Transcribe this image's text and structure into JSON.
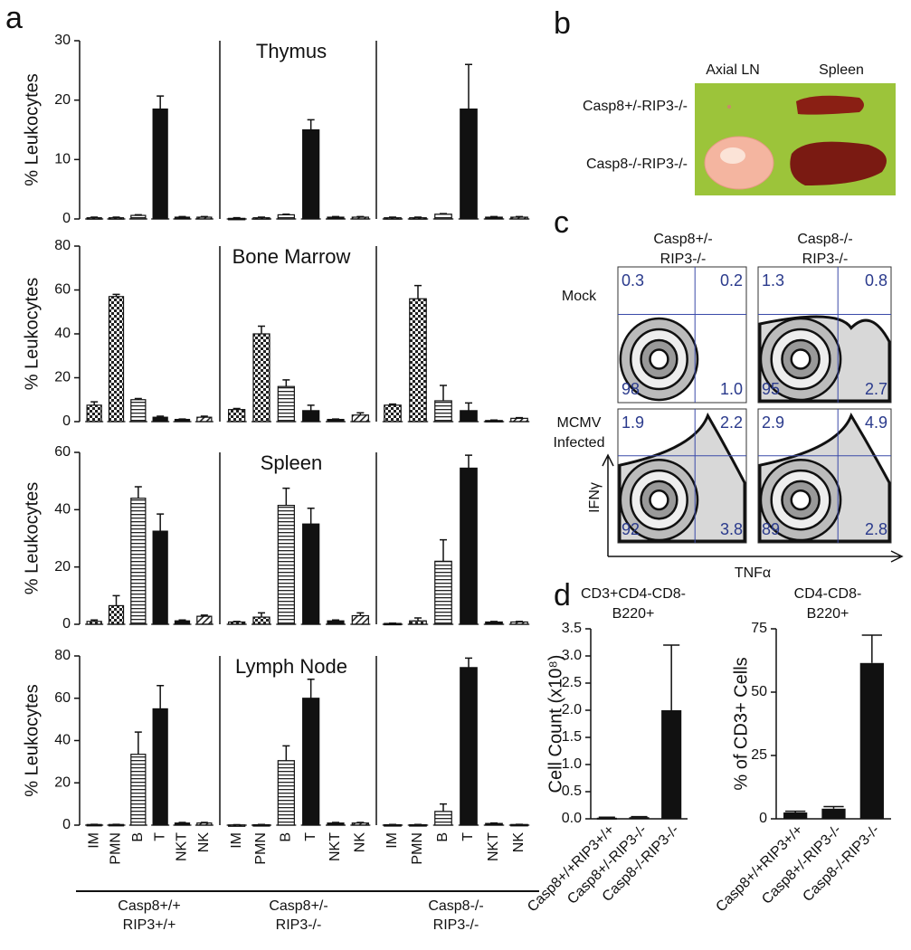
{
  "panel_labels": [
    "a",
    "b",
    "c",
    "d"
  ],
  "panel_a": {
    "categories": [
      "IM",
      "PMN",
      "B",
      "T",
      "NKT",
      "NK"
    ],
    "groups": [
      [
        "Casp8+/+",
        "RIP3+/+"
      ],
      [
        "Casp8+/-",
        "RIP3-/-"
      ],
      [
        "Casp8-/-",
        "RIP3-/-"
      ]
    ],
    "patterns": [
      "checker",
      "checker",
      "hstripe",
      "solid",
      "solid",
      "diag"
    ],
    "color": "#111111"
  },
  "chart_data": [
    {
      "type": "bar",
      "title": "Thymus",
      "y_label": "% Leukocytes",
      "ylim": [
        0,
        30
      ],
      "yticks": [
        0,
        10,
        20,
        30
      ],
      "series": [
        {
          "values": [
            0.2,
            0.2,
            0.6,
            18.5,
            0.3,
            0.3
          ],
          "errors": [
            0.1,
            0.1,
            0.1,
            2.2,
            0.1,
            0.1
          ]
        },
        {
          "values": [
            0.1,
            0.2,
            0.7,
            15,
            0.3,
            0.3
          ],
          "errors": [
            0.1,
            0.1,
            0.1,
            1.7,
            0.1,
            0.1
          ]
        },
        {
          "values": [
            0.2,
            0.2,
            0.8,
            18.5,
            0.3,
            0.3
          ],
          "errors": [
            0.1,
            0.1,
            0.1,
            7.5,
            0.1,
            0.1
          ]
        }
      ]
    },
    {
      "type": "bar",
      "title": "Bone Marrow",
      "y_label": "% Leukocytes",
      "ylim": [
        0,
        80
      ],
      "yticks": [
        0,
        20,
        40,
        60,
        80
      ],
      "series": [
        {
          "values": [
            7.5,
            57,
            10,
            2,
            1,
            2
          ],
          "errors": [
            1.5,
            1,
            0.5,
            0.5,
            0.2,
            0.5
          ]
        },
        {
          "values": [
            5.5,
            40,
            16,
            5,
            1,
            3
          ],
          "errors": [
            0.5,
            3.5,
            3,
            2.5,
            0.2,
            1
          ]
        },
        {
          "values": [
            7.5,
            56,
            9.5,
            5,
            0.5,
            1.5
          ],
          "errors": [
            0.5,
            6,
            7,
            3.5,
            0.2,
            0.3
          ]
        }
      ]
    },
    {
      "type": "bar",
      "title": "Spleen",
      "y_label": "% Leukocytes",
      "ylim": [
        0,
        60
      ],
      "yticks": [
        0,
        20,
        40,
        60
      ],
      "series": [
        {
          "values": [
            1,
            6.5,
            44,
            32.5,
            1.2,
            2.8
          ],
          "errors": [
            0.5,
            3.5,
            4,
            6,
            0.3,
            0.4
          ]
        },
        {
          "values": [
            0.8,
            2.5,
            41.5,
            35,
            1.2,
            3
          ],
          "errors": [
            0.2,
            1.5,
            6,
            5.5,
            0.3,
            1
          ]
        },
        {
          "values": [
            0.3,
            1.2,
            22,
            54.5,
            0.8,
            0.8
          ],
          "errors": [
            0.1,
            1,
            7.5,
            4.5,
            0.2,
            0.2
          ]
        }
      ]
    },
    {
      "type": "bar",
      "title": "Lymph Node",
      "y_label": "% Leukocytes",
      "ylim": [
        0,
        80
      ],
      "yticks": [
        0,
        20,
        40,
        60,
        80
      ],
      "series": [
        {
          "values": [
            0.3,
            0.3,
            33.5,
            55,
            1,
            1
          ],
          "errors": [
            0.1,
            0.1,
            10.5,
            11,
            0.3,
            0.3
          ]
        },
        {
          "values": [
            0.1,
            0.2,
            30.5,
            60,
            1,
            1
          ],
          "errors": [
            0.1,
            0.1,
            7,
            9,
            0.3,
            0.3
          ]
        },
        {
          "values": [
            0.2,
            0.2,
            6.5,
            74.5,
            0.8,
            0.3
          ],
          "errors": [
            0.1,
            0.1,
            3.5,
            4.5,
            0.2,
            0.1
          ]
        }
      ]
    },
    {
      "type": "bar",
      "title": [
        "CD3+CD4-CD8-",
        "B220+"
      ],
      "y_label": "Cell Count (x10⁸)",
      "color": "#111111",
      "categories": [
        "Casp8+/+RIP3+/+",
        "Casp8+/-RIP3-/-",
        "Casp8-/-RIP3-/-"
      ],
      "values": [
        0.02,
        0.03,
        2.0
      ],
      "errors": [
        0.01,
        0.01,
        1.2
      ],
      "ylim": [
        0,
        3.5
      ],
      "yticks": [
        {
          "value": 0,
          "label": "0.0"
        },
        0.5,
        {
          "value": 1,
          "label": "1.0"
        },
        1.5,
        {
          "value": 2,
          "label": "2.0"
        },
        2.5,
        {
          "value": 3,
          "label": "3.0"
        },
        3.5
      ]
    },
    {
      "type": "bar",
      "title": [
        "CD4-CD8-",
        "B220+"
      ],
      "y_label": "% of CD3+ Cells",
      "color": "#111111",
      "categories": [
        "Casp8+/+RIP3+/+",
        "Casp8+/-RIP3-/-",
        "Casp8-/-RIP3-/-"
      ],
      "values": [
        2.5,
        4,
        61.5
      ],
      "errors": [
        0.5,
        0.8,
        11
      ],
      "ylim": [
        0,
        75
      ],
      "yticks": [
        0,
        25,
        50,
        75
      ]
    }
  ],
  "panel_b": {
    "columns": [
      "Axial LN",
      "Spleen"
    ],
    "rows": [
      "Casp8+/-RIP3-/-",
      "Casp8-/-RIP3-/-"
    ]
  },
  "panel_c": {
    "columns": [
      [
        "Casp8+/-",
        "RIP3-/-"
      ],
      [
        "Casp8-/-",
        "RIP3-/-"
      ]
    ],
    "rows": [
      [
        "Mock"
      ],
      [
        "MCMV",
        "Infected"
      ]
    ],
    "quadrants": [
      [
        [
          "0.3",
          "0.2",
          "98",
          "1.0"
        ],
        [
          "1.3",
          "0.8",
          "95",
          "2.7"
        ]
      ],
      [
        [
          "1.9",
          "2.2",
          "92",
          "3.8"
        ],
        [
          "2.9",
          "4.9",
          "89",
          "2.8"
        ]
      ]
    ],
    "y_label": "IFNγ",
    "x_label": "TNFα"
  }
}
